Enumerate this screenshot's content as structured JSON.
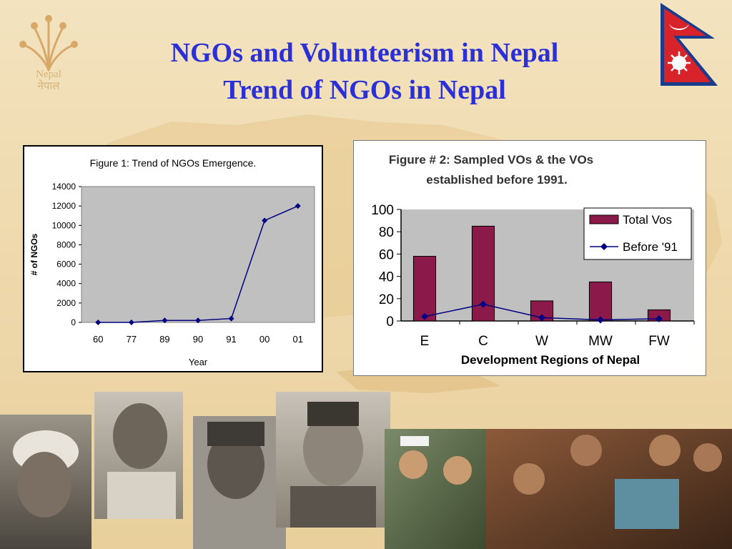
{
  "slide": {
    "title_line1": "NGOs and Volunteerism in Nepal",
    "title_line2": "Trend of NGOs in Nepal",
    "logo_line1": "Nepal",
    "logo_line2": "नेपाल"
  },
  "colors": {
    "title": "#2a2fd8",
    "fig1_line": "#000080",
    "fig1_plot_bg": "#c0c0c0",
    "fig2_bar": "#8b1a4a",
    "fig2_line": "#000080",
    "fig2_plot_bg": "#c0c0c0"
  },
  "chart_data": [
    {
      "type": "line",
      "title": "Figure 1: Trend of NGOs Emergence.",
      "xlabel": "Year",
      "ylabel": "# of NGOs",
      "categories": [
        "60",
        "77",
        "89",
        "90",
        "91",
        "00",
        "01"
      ],
      "series": [
        {
          "values": [
            0,
            0,
            200,
            200,
            400,
            10500,
            12000
          ]
        }
      ],
      "ylim": [
        0,
        14000
      ],
      "yticks": [
        "0",
        "2000",
        "4000",
        "6000",
        "8000",
        "10000",
        "12000",
        "14000"
      ],
      "grid": false,
      "legend": "none"
    },
    {
      "type": "bar",
      "title_line1": "Figure # 2: Sampled VOs & the VOs",
      "title_line2": "established before 1991.",
      "xlabel": "Development Regions of Nepal",
      "ylabel": "",
      "categories": [
        "E",
        "C",
        "W",
        "MW",
        "FW"
      ],
      "series": [
        {
          "name": "Total Vos",
          "kind": "bar",
          "values": [
            58,
            85,
            18,
            35,
            10
          ]
        },
        {
          "name": "Before '91",
          "kind": "line",
          "values": [
            4,
            15,
            3,
            1,
            2
          ]
        }
      ],
      "ylim": [
        0,
        100
      ],
      "yticks": [
        "0",
        "20",
        "40",
        "60",
        "80",
        "100"
      ],
      "grid": false,
      "legend": "top-right"
    }
  ]
}
